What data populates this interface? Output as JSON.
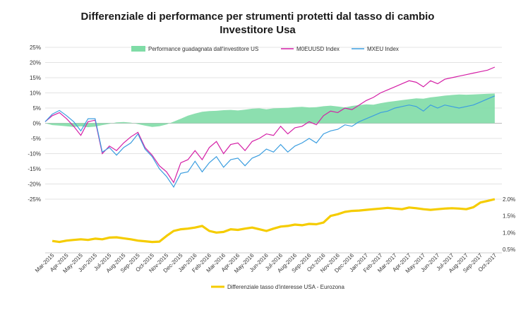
{
  "chart_data": {
    "type": "line",
    "title": [
      "Differenziale di performance per strumenti protetti dal tasso di cambio",
      "Investitore Usa"
    ],
    "x_tick_labels": [
      "Mar-2015",
      "Apr-2015",
      "May-2015",
      "Jun-2015",
      "Jul-2015",
      "Aug-2015",
      "Sep-2015",
      "Oct-2015",
      "Nov-2015",
      "Dec-2015",
      "Jan-2016",
      "Feb-2016",
      "Mar-2016",
      "Apr-2016",
      "May-2016",
      "Jun-2016",
      "Jul-2016",
      "Aug-2016",
      "Sep-2016",
      "Oct-2016",
      "Nov-2016",
      "Dec-2016",
      "Jan-2017",
      "Feb-2017",
      "Mar-2017",
      "Apr-2017",
      "May-2017",
      "Jun-2017",
      "Jul-2017",
      "Aug-2017",
      "Sep-2017",
      "Oct-2017"
    ],
    "top_panel": {
      "y_tick_labels": [
        "25%",
        "20%",
        "15%",
        "10%",
        "5%",
        "0%",
        "-5%",
        "-10%",
        "-15%",
        "-20%",
        "-25%"
      ],
      "ylim": [
        -25,
        25
      ],
      "grid": true,
      "legend": [
        "Performance guadagnata dall'investitore US",
        "M0EUUSD Index",
        "MXEU Index"
      ],
      "series": [
        {
          "name": "Performance guadagnata dall'investitore US",
          "kind": "area",
          "color": "#7fdca6",
          "x": [
            0,
            0.5,
            1,
            1.5,
            2,
            2.5,
            3,
            3.5,
            4,
            4.5,
            5,
            5.5,
            6,
            6.5,
            7,
            7.5,
            8,
            8.5,
            9,
            9.5,
            10,
            10.5,
            11,
            11.5,
            12,
            12.5,
            13,
            13.5,
            14,
            14.5,
            15,
            15.5,
            16,
            16.5,
            17,
            17.5,
            18,
            18.5,
            19,
            19.5,
            20,
            20.5,
            21,
            21.5,
            22,
            22.5,
            23,
            23.5,
            24,
            24.5,
            25,
            25.5,
            26,
            26.5,
            27,
            27.5,
            28,
            28.5,
            29,
            29.5,
            30,
            30.5,
            31,
            31.5
          ],
          "values": [
            0,
            -0.6,
            -0.8,
            -1.0,
            -1.2,
            -1.0,
            -1.3,
            -1.1,
            -0.6,
            -0.2,
            0.3,
            0.4,
            0.2,
            -0.3,
            -0.8,
            -1.2,
            -1.0,
            -0.4,
            0.5,
            1.5,
            2.5,
            3.2,
            3.8,
            4.0,
            4.1,
            4.3,
            4.4,
            4.2,
            4.5,
            4.8,
            4.9,
            4.6,
            4.9,
            5.0,
            5.1,
            5.3,
            5.4,
            5.2,
            5.3,
            5.6,
            5.8,
            5.5,
            5.2,
            5.7,
            6.0,
            6.2,
            6.1,
            6.6,
            7.0,
            7.3,
            7.6,
            7.9,
            8.2,
            8.1,
            8.5,
            8.8,
            9.1,
            9.3,
            9.5,
            9.4,
            9.5,
            9.6,
            9.7,
            9.8
          ]
        },
        {
          "name": "M0EUUSD Index",
          "kind": "line",
          "color": "#d41fa6",
          "x": [
            0,
            0.5,
            1,
            1.5,
            2,
            2.5,
            3,
            3.5,
            4,
            4.5,
            5,
            5.5,
            6,
            6.5,
            7,
            7.5,
            8,
            8.5,
            9,
            9.5,
            10,
            10.5,
            11,
            11.5,
            12,
            12.5,
            13,
            13.5,
            14,
            14.5,
            15,
            15.5,
            16,
            16.5,
            17,
            17.5,
            18,
            18.5,
            19,
            19.5,
            20,
            20.5,
            21,
            21.5,
            22,
            22.5,
            23,
            23.5,
            24,
            24.5,
            25,
            25.5,
            26,
            26.5,
            27,
            27.5,
            28,
            28.5,
            29,
            29.5,
            30,
            30.5,
            31,
            31.5
          ],
          "values": [
            0.5,
            2.5,
            3.5,
            1.5,
            -1.0,
            -4.0,
            0.5,
            1.0,
            -10.0,
            -7.5,
            -9.0,
            -6.5,
            -4.5,
            -3.0,
            -8.0,
            -10.5,
            -14.0,
            -16.0,
            -19.5,
            -13.0,
            -12.0,
            -9.0,
            -12.0,
            -8.0,
            -6.0,
            -10.0,
            -7.0,
            -6.5,
            -9.0,
            -6.0,
            -5.0,
            -3.5,
            -4.0,
            -1.0,
            -3.5,
            -1.5,
            -1.0,
            0.5,
            -0.5,
            2.5,
            4.0,
            3.5,
            5.0,
            4.5,
            6.0,
            7.5,
            8.5,
            10.0,
            11.0,
            12.0,
            13.0,
            14.0,
            13.5,
            12.0,
            14.0,
            13.0,
            14.5,
            15.0,
            15.5,
            16.0,
            16.5,
            17.0,
            17.5,
            18.5
          ]
        },
        {
          "name": "MXEU Index",
          "kind": "line",
          "color": "#3c9ee0",
          "x": [
            0,
            0.5,
            1,
            1.5,
            2,
            2.5,
            3,
            3.5,
            4,
            4.5,
            5,
            5.5,
            6,
            6.5,
            7,
            7.5,
            8,
            8.5,
            9,
            9.5,
            10,
            10.5,
            11,
            11.5,
            12,
            12.5,
            13,
            13.5,
            14,
            14.5,
            15,
            15.5,
            16,
            16.5,
            17,
            17.5,
            18,
            18.5,
            19,
            19.5,
            20,
            20.5,
            21,
            21.5,
            22,
            22.5,
            23,
            23.5,
            24,
            24.5,
            25,
            25.5,
            26,
            26.5,
            27,
            27.5,
            28,
            28.5,
            29,
            29.5,
            30,
            30.5,
            31,
            31.5
          ],
          "values": [
            0.5,
            3.0,
            4.2,
            2.5,
            0.5,
            -2.5,
            1.5,
            1.5,
            -9.5,
            -8.0,
            -10.5,
            -8.0,
            -6.5,
            -3.5,
            -8.5,
            -11.0,
            -15.0,
            -17.5,
            -21.0,
            -16.5,
            -16.0,
            -12.5,
            -16.0,
            -13.0,
            -11.0,
            -14.5,
            -12.0,
            -11.5,
            -14.0,
            -11.5,
            -10.5,
            -8.5,
            -9.5,
            -7.0,
            -9.5,
            -7.5,
            -6.5,
            -5.0,
            -6.5,
            -3.5,
            -2.5,
            -2.0,
            -0.5,
            -1.0,
            0.5,
            1.5,
            2.5,
            3.5,
            4.0,
            5.0,
            5.5,
            6.0,
            5.5,
            4.0,
            6.0,
            5.0,
            6.0,
            5.5,
            5.0,
            5.5,
            6.0,
            7.0,
            8.0,
            9.0
          ]
        }
      ]
    },
    "bottom_panel": {
      "y_tick_labels": [
        "2.0%",
        "1.5%",
        "1.0%",
        "0.5%"
      ],
      "ylim": [
        0.5,
        2.0
      ],
      "legend": [
        "Differenziale tasso d'interesse USA - Eurozona"
      ],
      "series": [
        {
          "name": "Differenziale tasso d'interesse USA - Eurozona",
          "kind": "line",
          "color": "#f5cc00",
          "x": [
            0.5,
            1,
            1.5,
            2,
            2.5,
            3,
            3.5,
            4,
            4.5,
            5,
            5.5,
            6,
            6.5,
            7,
            7.5,
            8,
            8.5,
            9,
            9.5,
            10,
            10.5,
            11,
            11.5,
            12,
            12.5,
            13,
            13.5,
            14,
            14.5,
            15,
            15.5,
            16,
            16.5,
            17,
            17.5,
            18,
            18.5,
            19,
            19.5,
            20,
            20.5,
            21,
            21.5,
            22,
            22.5,
            23,
            23.5,
            24,
            24.5,
            25,
            25.5,
            26,
            26.5,
            27,
            27.5,
            28,
            28.5,
            29,
            29.5,
            30,
            30.5,
            31,
            31.5
          ],
          "values": [
            0.75,
            0.72,
            0.76,
            0.78,
            0.8,
            0.78,
            0.82,
            0.8,
            0.85,
            0.86,
            0.83,
            0.8,
            0.76,
            0.74,
            0.72,
            0.73,
            0.9,
            1.05,
            1.1,
            1.12,
            1.15,
            1.2,
            1.05,
            1.0,
            1.02,
            1.1,
            1.08,
            1.12,
            1.15,
            1.1,
            1.05,
            1.12,
            1.18,
            1.2,
            1.24,
            1.22,
            1.26,
            1.25,
            1.3,
            1.5,
            1.55,
            1.62,
            1.65,
            1.66,
            1.68,
            1.7,
            1.72,
            1.74,
            1.72,
            1.7,
            1.75,
            1.73,
            1.7,
            1.68,
            1.7,
            1.72,
            1.73,
            1.72,
            1.7,
            1.76,
            1.9,
            1.95,
            2.0
          ]
        }
      ]
    }
  }
}
